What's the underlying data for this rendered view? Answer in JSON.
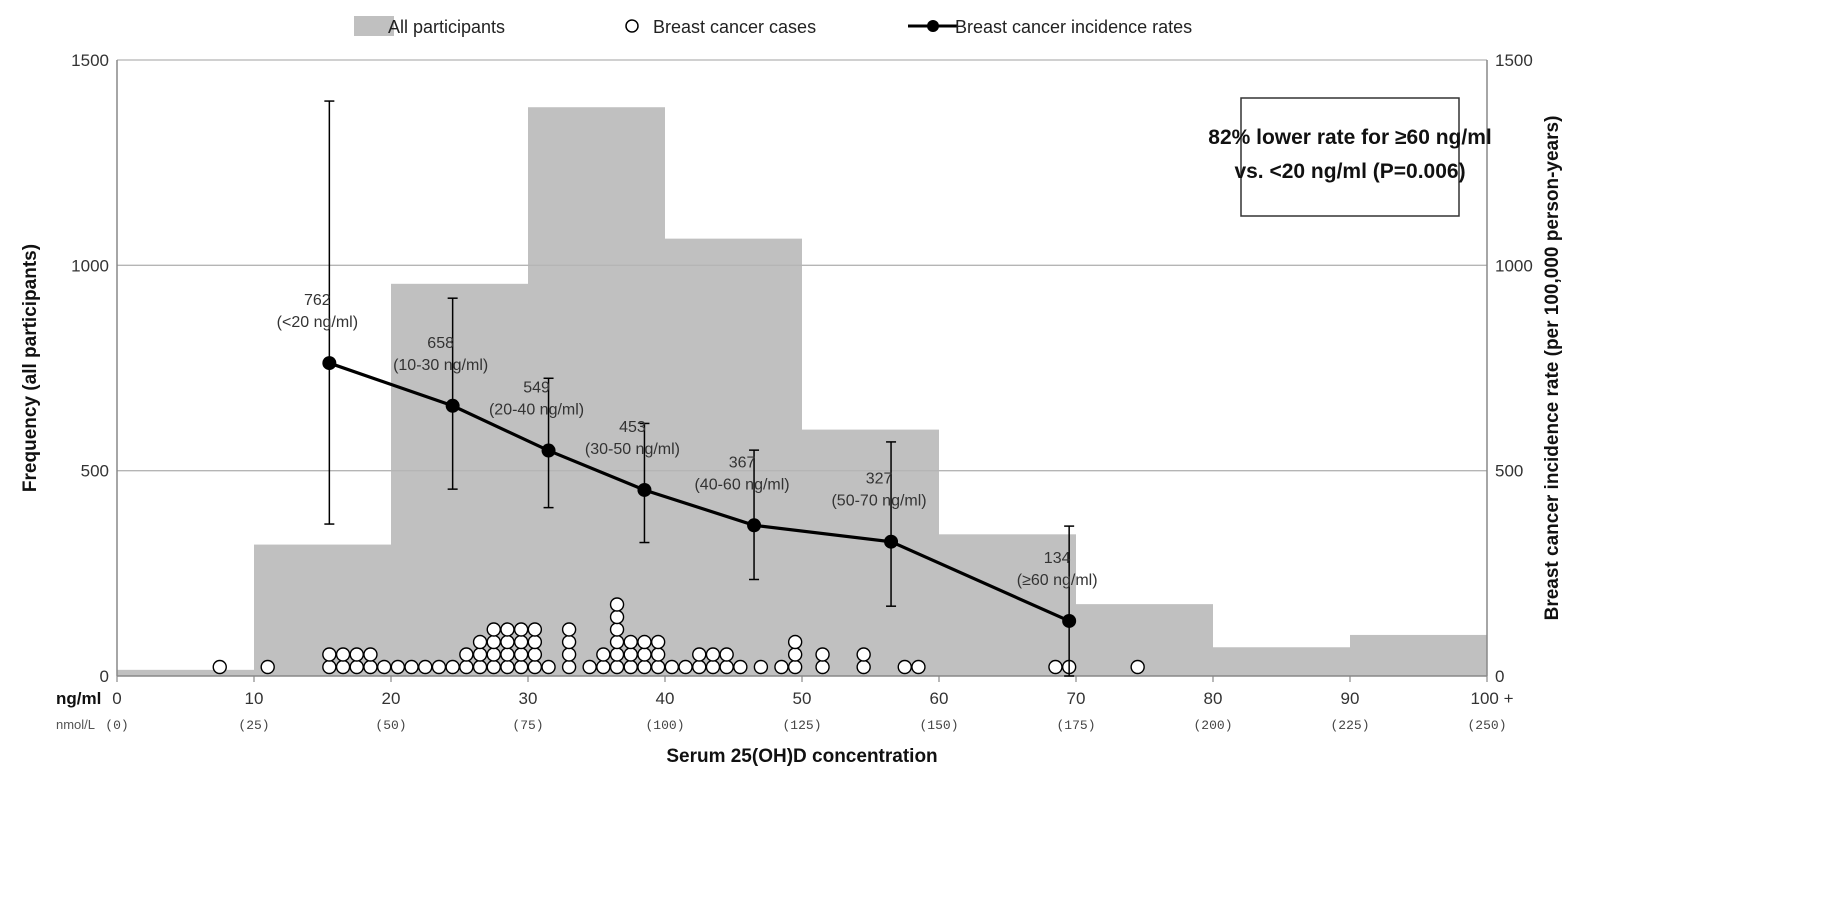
{
  "legend": {
    "participants": "All participants",
    "cases": "Breast cancer cases",
    "rates": "Breast cancer incidence rates"
  },
  "axes": {
    "y_left_title": "Frequency (all participants)",
    "y_right_title": "Breast cancer incidence rate (per 100,000 person-years)",
    "x_title": "Serum 25(OH)D concentration",
    "x_unit_ng": "ng/ml",
    "x_unit_nmol": "nmol/L"
  },
  "annotation": {
    "line1": "82% lower rate for ≥60 ng/ml",
    "line2": "vs. <20 ng/ml (P=0.006)"
  },
  "colors": {
    "bars": "#c0c0c0",
    "line": "#000000",
    "grid": "#b5b5b5"
  },
  "chart_data": {
    "type": "bar",
    "xlim": [
      0,
      100
    ],
    "ylim_left": [
      0,
      1500
    ],
    "ylim_right": [
      0,
      1500
    ],
    "x_ticks": [
      {
        "value": 0,
        "ng": "0",
        "nmol": "(0)"
      },
      {
        "value": 10,
        "ng": "10",
        "nmol": "(25)"
      },
      {
        "value": 20,
        "ng": "20",
        "nmol": "(50)"
      },
      {
        "value": 30,
        "ng": "30",
        "nmol": "(75)"
      },
      {
        "value": 40,
        "ng": "40",
        "nmol": "(100)"
      },
      {
        "value": 50,
        "ng": "50",
        "nmol": "(125)"
      },
      {
        "value": 60,
        "ng": "60",
        "nmol": "(150)"
      },
      {
        "value": 70,
        "ng": "70",
        "nmol": "(175)"
      },
      {
        "value": 80,
        "ng": "80",
        "nmol": "(200)"
      },
      {
        "value": 90,
        "ng": "90",
        "nmol": "(225)"
      },
      {
        "value": 100,
        "ng": "100 +",
        "nmol": "(250)"
      }
    ],
    "y_ticks": [
      {
        "value": 0,
        "label": "0"
      },
      {
        "value": 500,
        "label": "500"
      },
      {
        "value": 1000,
        "label": "1000"
      },
      {
        "value": 1500,
        "label": "1500"
      }
    ],
    "grid": true,
    "legend_position": "top",
    "histogram": {
      "name": "All participants",
      "bins": [
        {
          "x0": 0,
          "x1": 10,
          "value": 15
        },
        {
          "x0": 10,
          "x1": 20,
          "value": 320
        },
        {
          "x0": 20,
          "x1": 30,
          "value": 955
        },
        {
          "x0": 30,
          "x1": 40,
          "value": 1385
        },
        {
          "x0": 40,
          "x1": 50,
          "value": 1065
        },
        {
          "x0": 50,
          "x1": 60,
          "value": 600
        },
        {
          "x0": 60,
          "x1": 70,
          "value": 345
        },
        {
          "x0": 70,
          "x1": 80,
          "value": 175
        },
        {
          "x0": 80,
          "x1": 90,
          "value": 70
        },
        {
          "x0": 90,
          "x1": 100,
          "value": 100
        }
      ]
    },
    "cases": {
      "name": "Breast cancer cases",
      "points": [
        {
          "x": 7.5,
          "count": 1
        },
        {
          "x": 11,
          "count": 1
        },
        {
          "x": 15.5,
          "count": 2
        },
        {
          "x": 16.5,
          "count": 2
        },
        {
          "x": 17.5,
          "count": 2
        },
        {
          "x": 18.5,
          "count": 2
        },
        {
          "x": 19.5,
          "count": 1
        },
        {
          "x": 20.5,
          "count": 1
        },
        {
          "x": 21.5,
          "count": 1
        },
        {
          "x": 22.5,
          "count": 1
        },
        {
          "x": 23.5,
          "count": 1
        },
        {
          "x": 24.5,
          "count": 1
        },
        {
          "x": 25.5,
          "count": 2
        },
        {
          "x": 26.5,
          "count": 3
        },
        {
          "x": 27.5,
          "count": 4
        },
        {
          "x": 28.5,
          "count": 4
        },
        {
          "x": 29.5,
          "count": 4
        },
        {
          "x": 30.5,
          "count": 4
        },
        {
          "x": 31.5,
          "count": 1
        },
        {
          "x": 33,
          "count": 4
        },
        {
          "x": 34.5,
          "count": 1
        },
        {
          "x": 35.5,
          "count": 2
        },
        {
          "x": 36.5,
          "count": 6
        },
        {
          "x": 37.5,
          "count": 3
        },
        {
          "x": 38.5,
          "count": 3
        },
        {
          "x": 39.5,
          "count": 3
        },
        {
          "x": 40.5,
          "count": 1
        },
        {
          "x": 41.5,
          "count": 1
        },
        {
          "x": 42.5,
          "count": 2
        },
        {
          "x": 43.5,
          "count": 2
        },
        {
          "x": 44.5,
          "count": 2
        },
        {
          "x": 45.5,
          "count": 1
        },
        {
          "x": 47,
          "count": 1
        },
        {
          "x": 48.5,
          "count": 1
        },
        {
          "x": 49.5,
          "count": 3
        },
        {
          "x": 51.5,
          "count": 2
        },
        {
          "x": 54.5,
          "count": 2
        },
        {
          "x": 57.5,
          "count": 1
        },
        {
          "x": 58.5,
          "count": 1
        },
        {
          "x": 68.5,
          "count": 1
        },
        {
          "x": 69.5,
          "count": 1
        },
        {
          "x": 74.5,
          "count": 1
        }
      ]
    },
    "rates": {
      "name": "Breast cancer incidence rates",
      "points": [
        {
          "x": 15.5,
          "y": 762,
          "low": 370,
          "high": 1400,
          "value_label": "762",
          "range_label": "(<20 ng/ml)"
        },
        {
          "x": 24.5,
          "y": 658,
          "low": 455,
          "high": 920,
          "value_label": "658",
          "range_label": "(10-30 ng/ml)"
        },
        {
          "x": 31.5,
          "y": 549,
          "low": 410,
          "high": 725,
          "value_label": "549",
          "range_label": "(20-40 ng/ml)"
        },
        {
          "x": 38.5,
          "y": 453,
          "low": 325,
          "high": 615,
          "value_label": "453",
          "range_label": "(30-50 ng/ml)"
        },
        {
          "x": 46.5,
          "y": 367,
          "low": 235,
          "high": 550,
          "value_label": "367",
          "range_label": "(40-60 ng/ml)"
        },
        {
          "x": 56.5,
          "y": 327,
          "low": 170,
          "high": 570,
          "value_label": "327",
          "range_label": "(50-70 ng/ml)"
        },
        {
          "x": 69.5,
          "y": 134,
          "low": 0,
          "high": 365,
          "value_label": "134",
          "range_label": "(≥60 ng/ml)"
        }
      ]
    }
  }
}
